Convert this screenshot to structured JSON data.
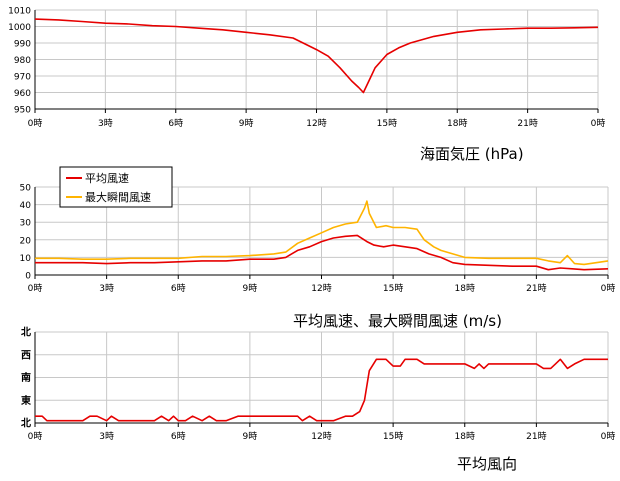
{
  "chart_data": [
    {
      "type": "line",
      "title": "海面気圧 (hPa)",
      "categories": [
        "0時",
        "3時",
        "6時",
        "9時",
        "12時",
        "15時",
        "18時",
        "21時",
        "0時"
      ],
      "ylim": [
        950,
        1010
      ],
      "yticks": [
        "950",
        "960",
        "970",
        "980",
        "990",
        "1000",
        "1010"
      ],
      "grid": true,
      "series": [
        {
          "color": "#e60000",
          "x": [
            0,
            1,
            2,
            3,
            4,
            5,
            6,
            7,
            8,
            9,
            10,
            11,
            12,
            12.5,
            13,
            13.5,
            13.8,
            14,
            14.2,
            14.5,
            15,
            15.5,
            16,
            17,
            18,
            19,
            20,
            21,
            22,
            23,
            24
          ],
          "values": [
            1004.5,
            1004,
            1003,
            1002,
            1001.5,
            1000.5,
            1000,
            999,
            998,
            996.5,
            995,
            993,
            986,
            982,
            975,
            967,
            963,
            960,
            966,
            975,
            983,
            987,
            990,
            994,
            996.5,
            998,
            998.5,
            999,
            999,
            999.2,
            999.5
          ]
        }
      ]
    },
    {
      "type": "line",
      "title": "平均風速、最大瞬間風速 (m/s)",
      "categories": [
        "0時",
        "3時",
        "6時",
        "9時",
        "12時",
        "15時",
        "18時",
        "21時",
        "0時"
      ],
      "ylim": [
        0,
        50
      ],
      "yticks": [
        "0",
        "10",
        "20",
        "30",
        "40",
        "50"
      ],
      "grid": true,
      "legend": "top-left",
      "series": [
        {
          "name": "平均風速",
          "color": "#e60000",
          "x": [
            0,
            1,
            2,
            3,
            4,
            5,
            6,
            7,
            8,
            9,
            10,
            10.5,
            11,
            11.5,
            12,
            12.5,
            13,
            13.5,
            13.9,
            14.2,
            14.6,
            15,
            15.5,
            16,
            16.5,
            17,
            17.5,
            18,
            19,
            20,
            21,
            21.5,
            22,
            22.5,
            23,
            24
          ],
          "values": [
            7,
            7,
            7,
            6.5,
            7,
            7,
            7.5,
            8,
            8,
            9,
            9,
            10,
            14,
            16,
            19,
            21,
            22,
            22.5,
            19,
            17,
            16,
            17,
            16,
            15,
            12,
            10,
            7,
            6,
            5.5,
            5,
            5,
            3,
            4,
            3.5,
            3,
            3.5
          ]
        },
        {
          "name": "最大瞬間風速",
          "color": "#ffb400",
          "x": [
            0,
            1,
            2,
            3,
            4,
            5,
            6,
            7,
            8,
            9,
            10,
            10.5,
            11,
            11.5,
            12,
            12.5,
            13,
            13.5,
            13.8,
            13.9,
            14,
            14.3,
            14.7,
            15,
            15.5,
            16,
            16.3,
            16.7,
            17,
            17.5,
            18,
            19,
            20,
            21,
            21.5,
            22,
            22.3,
            22.6,
            23,
            24
          ],
          "values": [
            9.5,
            9.5,
            9,
            9,
            9.5,
            9.5,
            9.5,
            10.5,
            10.5,
            11,
            12,
            13,
            18,
            21,
            24,
            27,
            29,
            30,
            38,
            42,
            35,
            27,
            28,
            27,
            27,
            26,
            20,
            16,
            14,
            12,
            10,
            9.5,
            9.5,
            9.5,
            8,
            7,
            11,
            6.5,
            6,
            8
          ]
        }
      ]
    },
    {
      "type": "line",
      "title": "平均風向",
      "categories": [
        "0時",
        "3時",
        "6時",
        "9時",
        "12時",
        "15時",
        "18時",
        "21時",
        "0時"
      ],
      "ycategories": [
        "北",
        "東",
        "南",
        "西",
        "北"
      ],
      "grid": true,
      "series": [
        {
          "color": "#e60000",
          "x": [
            0,
            0.3,
            0.5,
            1,
            1.5,
            2,
            2.3,
            2.6,
            3,
            3.2,
            3.5,
            4,
            4.5,
            5,
            5.3,
            5.6,
            5.8,
            6,
            6.3,
            6.6,
            7,
            7.3,
            7.6,
            8,
            8.5,
            9,
            9.5,
            10,
            10.5,
            11,
            11.2,
            11.5,
            11.8,
            12,
            12.5,
            13,
            13.3,
            13.6,
            13.8,
            14,
            14.3,
            14.7,
            15,
            15.3,
            15.5,
            16,
            16.3,
            16.6,
            17,
            17.5,
            18,
            18.4,
            18.6,
            18.8,
            19,
            19.3,
            19.6,
            20,
            20.5,
            21,
            21.3,
            21.6,
            21.8,
            22,
            22.3,
            22.6,
            23,
            24
          ],
          "values": [
            0.3,
            0.3,
            0.1,
            0.1,
            0.1,
            0.1,
            0.3,
            0.3,
            0.1,
            0.3,
            0.1,
            0.1,
            0.1,
            0.1,
            0.3,
            0.1,
            0.3,
            0.1,
            0.1,
            0.3,
            0.1,
            0.3,
            0.1,
            0.1,
            0.3,
            0.3,
            0.3,
            0.3,
            0.3,
            0.3,
            0.1,
            0.3,
            0.1,
            0.1,
            0.1,
            0.3,
            0.3,
            0.5,
            1,
            2.3,
            2.8,
            2.8,
            2.5,
            2.5,
            2.8,
            2.8,
            2.6,
            2.6,
            2.6,
            2.6,
            2.6,
            2.4,
            2.6,
            2.4,
            2.6,
            2.6,
            2.6,
            2.6,
            2.6,
            2.6,
            2.4,
            2.4,
            2.6,
            2.8,
            2.4,
            2.6,
            2.8,
            2.8
          ]
        }
      ]
    }
  ]
}
